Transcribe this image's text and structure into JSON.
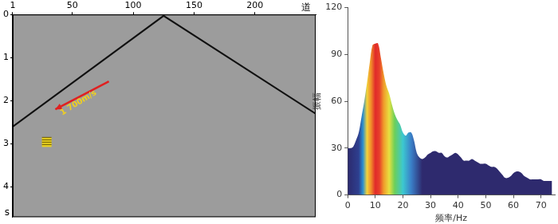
{
  "chart_data": [
    {
      "type": "line",
      "x_label": "道",
      "y_label": "s",
      "x": [
        1,
        125,
        250
      ],
      "values": [
        2.6,
        0.03,
        2.3
      ],
      "color": "#111111",
      "xlim": [
        1,
        250
      ],
      "xticks": [
        1,
        50,
        100,
        150,
        200
      ],
      "ylim": [
        0,
        4.7
      ],
      "yticks": [
        0,
        1,
        2,
        3,
        4
      ],
      "annotations": [
        {
          "text": "1 700m/s"
        }
      ],
      "grid": false
    },
    {
      "type": "line",
      "x_label": "频率/Hz",
      "y_label": "振幅",
      "x": [
        0,
        1,
        2,
        3,
        4,
        5,
        6,
        7,
        8,
        9,
        10,
        11,
        12,
        13,
        14,
        15,
        16,
        17,
        18,
        19,
        20,
        21,
        22,
        23,
        24,
        25,
        26,
        27,
        28,
        29,
        30,
        31,
        32,
        33,
        34,
        35,
        36,
        37,
        38,
        39,
        40,
        41,
        42,
        43,
        44,
        45,
        46,
        47,
        48,
        49,
        50,
        51,
        52,
        53,
        54,
        55,
        56,
        57,
        58,
        59,
        60,
        61,
        62,
        63,
        64,
        65,
        66,
        67,
        68,
        69,
        70,
        71,
        72,
        73,
        74
      ],
      "values": [
        30,
        30,
        31,
        35,
        40,
        50,
        60,
        72,
        85,
        96,
        97,
        97,
        88,
        78,
        70,
        65,
        58,
        52,
        48,
        45,
        40,
        38,
        40,
        40,
        35,
        27,
        24,
        23,
        24,
        26,
        27,
        28,
        28,
        27,
        27,
        25,
        24,
        25,
        26,
        27,
        26,
        24,
        22,
        22,
        22,
        23,
        22,
        21,
        20,
        20,
        20,
        19,
        18,
        18,
        17,
        15,
        13,
        11,
        11,
        12,
        14,
        15,
        15,
        14,
        12,
        11,
        10,
        10,
        10,
        10,
        10,
        9,
        9,
        9,
        9
      ],
      "color": "#2e2a6e",
      "xlim": [
        0,
        75
      ],
      "xticks": [
        0,
        10,
        20,
        30,
        40,
        50,
        60,
        70
      ],
      "ylim": [
        0,
        120
      ],
      "yticks": [
        0,
        30,
        60,
        90,
        120
      ],
      "grid": false
    }
  ]
}
